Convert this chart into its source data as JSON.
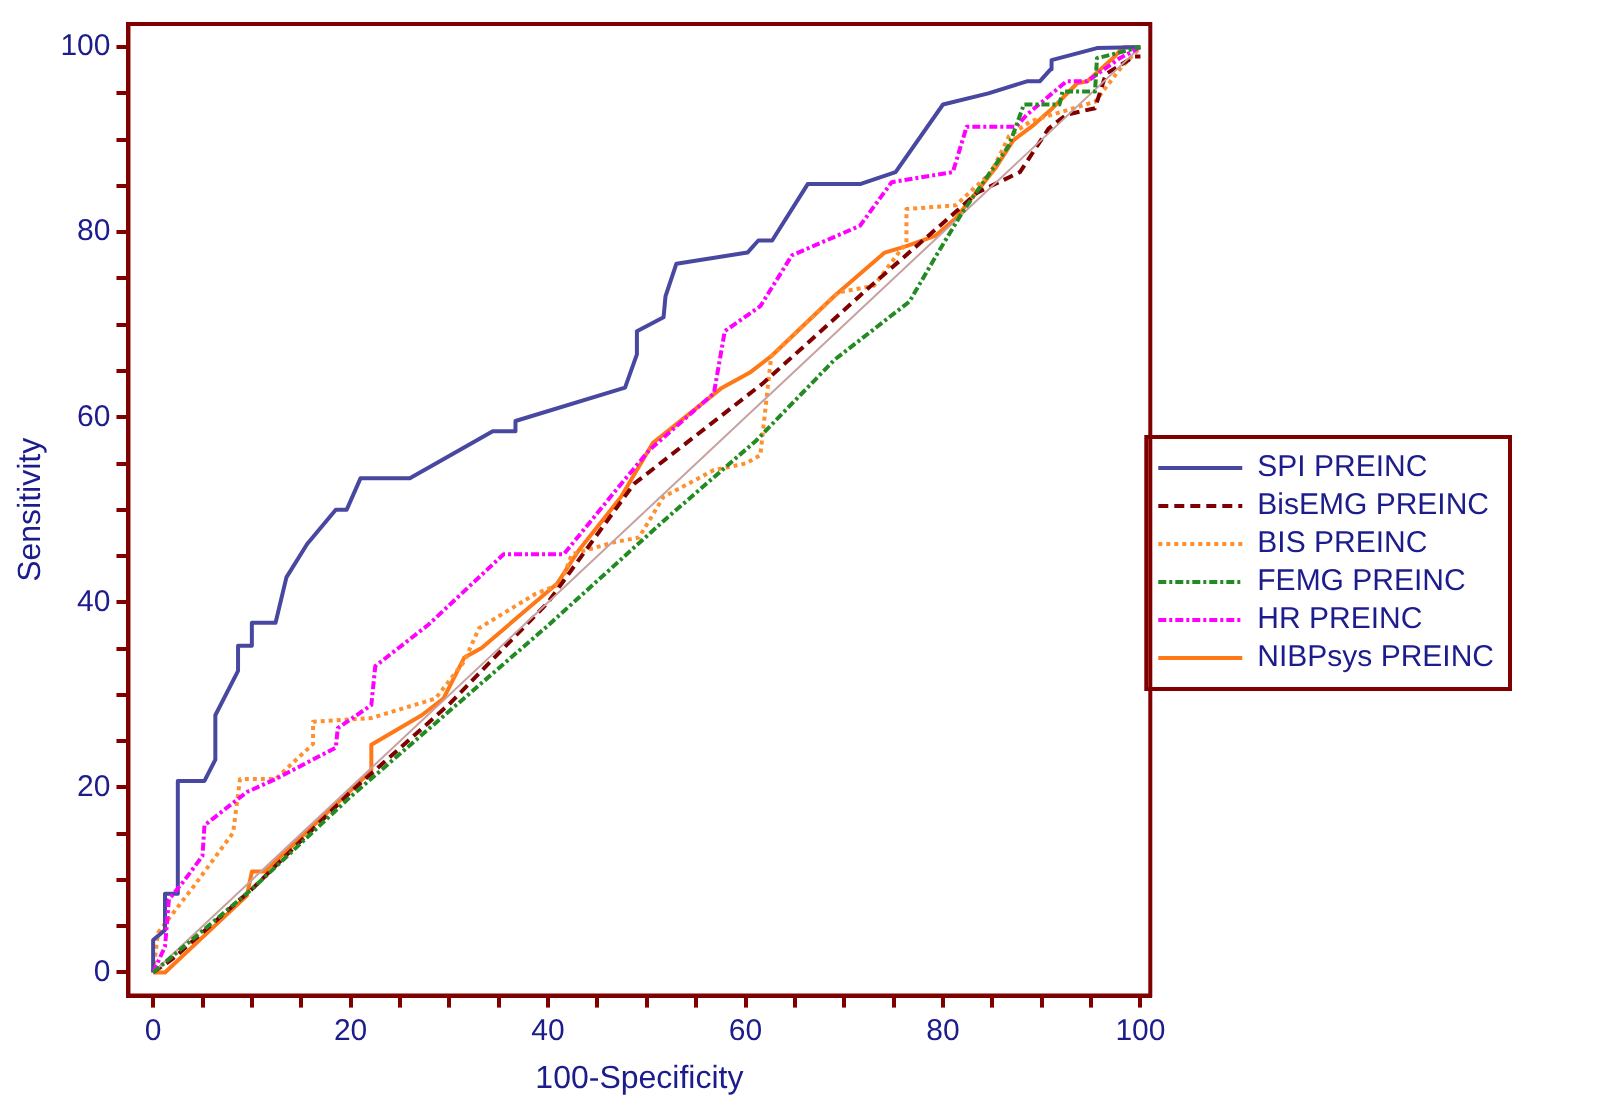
{
  "chart_data": {
    "type": "line",
    "xlabel": "100-Specificity",
    "ylabel": "Sensitivity",
    "xlim": [
      -2.5,
      101
    ],
    "ylim": [
      -2.5,
      102.5
    ],
    "xticks": [
      0,
      {
        "value": 5,
        "label": null
      },
      {
        "value": 10,
        "label": null
      },
      {
        "value": 15,
        "label": null
      },
      20,
      {
        "value": 25,
        "label": null
      },
      {
        "value": 30,
        "label": null
      },
      {
        "value": 35,
        "label": null
      },
      40,
      {
        "value": 45,
        "label": null
      },
      {
        "value": 50,
        "label": null
      },
      {
        "value": 55,
        "label": null
      },
      60,
      {
        "value": 65,
        "label": null
      },
      {
        "value": 70,
        "label": null
      },
      {
        "value": 75,
        "label": null
      },
      80,
      {
        "value": 85,
        "label": null
      },
      {
        "value": 90,
        "label": null
      },
      {
        "value": 95,
        "label": null
      },
      100
    ],
    "yticks": [
      0,
      {
        "value": 5,
        "label": null
      },
      {
        "value": 10,
        "label": null
      },
      {
        "value": 15,
        "label": null
      },
      20,
      {
        "value": 25,
        "label": null
      },
      {
        "value": 30,
        "label": null
      },
      {
        "value": 35,
        "label": null
      },
      40,
      {
        "value": 45,
        "label": null
      },
      {
        "value": 50,
        "label": null
      },
      {
        "value": 55,
        "label": null
      },
      60,
      {
        "value": 65,
        "label": null
      },
      {
        "value": 70,
        "label": null
      },
      {
        "value": 75,
        "label": null
      },
      80,
      {
        "value": 85,
        "label": null
      },
      {
        "value": 90,
        "label": null
      },
      {
        "value": 95,
        "label": null
      },
      100
    ],
    "grid": false,
    "legend": "right",
    "marker": "none",
    "series": [
      {
        "color": "#c8a0a0",
        "line_style": "solid",
        "x": [
          0,
          100
        ],
        "values": [
          0,
          100
        ]
      },
      {
        "name": "SPI PREINC",
        "color": "#4848a0",
        "line_style": "solid",
        "x": [
          0,
          0,
          1.2,
          1.2,
          2.5,
          2.5,
          5.2,
          6.3,
          6.3,
          8.6,
          8.6,
          10,
          10,
          12.4,
          13.5,
          15.6,
          18.5,
          19.6,
          21,
          26,
          34.4,
          36.7,
          36.7,
          47.8,
          49,
          49,
          51.7,
          51.9,
          53,
          60.2,
          61.3,
          62.7,
          66.3,
          71.6,
          75.2,
          80,
          84.6,
          88.5,
          89.8,
          90.9,
          91,
          95.6,
          99.4,
          100
        ],
        "values": [
          0,
          3.5,
          4.6,
          8.5,
          8.5,
          20.7,
          20.7,
          23,
          27.8,
          32.6,
          35.3,
          35.3,
          37.8,
          37.8,
          42.7,
          46.3,
          50,
          50,
          53.4,
          53.4,
          58.5,
          58.5,
          59.6,
          63.2,
          66.8,
          69.3,
          70.8,
          73.1,
          76.6,
          77.8,
          79.1,
          79.1,
          85.2,
          85.2,
          86.5,
          93.8,
          95,
          96.3,
          96.3,
          97.6,
          98.6,
          99.9,
          100,
          100
        ]
      },
      {
        "name": "BisEMG PREINC",
        "color": "#800000",
        "line_style": "dashed",
        "x": [
          0,
          2,
          10,
          20,
          30,
          40,
          48.7,
          61.8,
          72.7,
          81.3,
          83.5,
          87.8,
          90.7,
          92.5,
          95.4,
          96.5,
          99.4,
          100
        ],
        "values": [
          0,
          1.5,
          9,
          19.5,
          29,
          40,
          52.8,
          63.7,
          74.2,
          82.2,
          84.3,
          86.5,
          91.2,
          92.7,
          93.4,
          97.1,
          99,
          99
        ]
      },
      {
        "name": "BIS PREINC",
        "color": "#ff9030",
        "line_style": "dotted",
        "x": [
          0,
          0.5,
          4.1,
          8.1,
          8.8,
          12.4,
          16.2,
          16.2,
          22.1,
          28.6,
          31.5,
          33,
          38.7,
          41.3,
          42.4,
          46.7,
          49.2,
          51.7,
          56.8,
          60,
          61.5,
          62.6,
          69.4,
          73,
          76.3,
          76.3,
          81.3,
          84.9,
          86.7,
          88.9,
          95.4,
          97.9,
          100
        ],
        "values": [
          0,
          4.3,
          9.3,
          15.1,
          20.9,
          20.9,
          24.7,
          27.1,
          27.5,
          29.6,
          33.6,
          37.2,
          40.9,
          42,
          45.2,
          46.5,
          47,
          51.4,
          54.3,
          55,
          55.9,
          66.6,
          73.5,
          74.2,
          78.9,
          82.5,
          82.9,
          86.5,
          90.4,
          92,
          94.1,
          97.6,
          100
        ]
      },
      {
        "name": "FEMG PREINC",
        "color": "#228b22",
        "line_style": "dashdot",
        "x": [
          0,
          10,
          20,
          40,
          51.7,
          61.1,
          69,
          76.6,
          79.5,
          82,
          86.7,
          88.2,
          91.8,
          92.1,
          95.4,
          95.6,
          100
        ],
        "values": [
          0,
          9,
          19,
          37.5,
          48.8,
          57.5,
          66.2,
          72.5,
          77.8,
          82.2,
          89.4,
          93.8,
          93.8,
          95.2,
          95.2,
          98.8,
          100
        ]
      },
      {
        "name": "HR PREINC",
        "color": "#ff00ff",
        "line_style": "dashdot",
        "x": [
          0,
          1.2,
          1.6,
          3.2,
          5,
          5.2,
          7.7,
          9.5,
          12.4,
          18.5,
          18.7,
          22.1,
          22.5,
          27.9,
          35.5,
          41.6,
          47.4,
          50.3,
          56.8,
          57.9,
          61.5,
          64.7,
          71.6,
          74.8,
          81,
          82.4,
          87.4,
          88.5,
          92.5,
          94.6,
          97.9,
          100
        ],
        "values": [
          0,
          2.8,
          7.9,
          10,
          12.6,
          15.9,
          18,
          19.5,
          20.9,
          24.3,
          26.4,
          28.9,
          33.1,
          37.6,
          45.2,
          45.2,
          52.8,
          56.5,
          62.6,
          69.3,
          72,
          77.5,
          80.7,
          85.4,
          86.5,
          91.4,
          91.4,
          92.7,
          96.3,
          96.3,
          98.8,
          100
        ]
      },
      {
        "name": "NIBPsys PREINC",
        "color": "#ff7818",
        "line_style": "solid",
        "x": [
          0,
          1.2,
          9.5,
          10,
          11.3,
          22.1,
          22.1,
          27.2,
          29.4,
          31.5,
          33.3,
          40.9,
          43.1,
          47.4,
          50.6,
          57.5,
          60.4,
          62.6,
          69,
          74.1,
          76.3,
          79.2,
          81.3,
          85.3,
          87.1,
          89.2,
          91.1,
          93.6,
          94.6,
          97.2,
          98.3,
          100
        ],
        "values": [
          0,
          0,
          8.3,
          10.9,
          10.9,
          21.8,
          24.6,
          27.8,
          29.6,
          34,
          35.1,
          42,
          45.6,
          51.4,
          57.2,
          63.1,
          64.8,
          66.6,
          73.1,
          77.8,
          78.5,
          79.6,
          81.5,
          86.9,
          89.9,
          91.6,
          93.4,
          96.1,
          96.3,
          98.8,
          100,
          100
        ]
      }
    ]
  }
}
